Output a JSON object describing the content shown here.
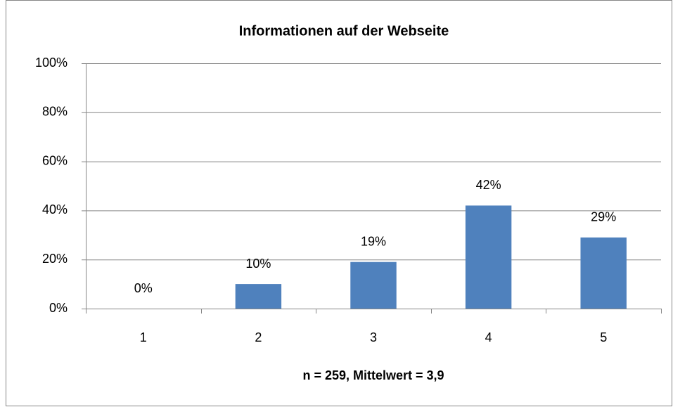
{
  "chart_data": {
    "type": "bar",
    "title": "Informationen auf der Webseite",
    "x_label": "n = 259, Mittelwert = 3,9",
    "categories": [
      "1",
      "2",
      "3",
      "4",
      "5"
    ],
    "values": [
      0,
      10,
      19,
      42,
      29
    ],
    "value_labels": [
      "0%",
      "10%",
      "19%",
      "42%",
      "29%"
    ],
    "color": "#4f81bd",
    "ylim": [
      0,
      100
    ],
    "yticks": [
      {
        "value": 0,
        "label": "0%"
      },
      {
        "value": 20,
        "label": "20%"
      },
      {
        "value": 40,
        "label": "40%"
      },
      {
        "value": 60,
        "label": "60%"
      },
      {
        "value": 80,
        "label": "80%"
      },
      {
        "value": 100,
        "label": "100%"
      }
    ],
    "grid": true
  }
}
